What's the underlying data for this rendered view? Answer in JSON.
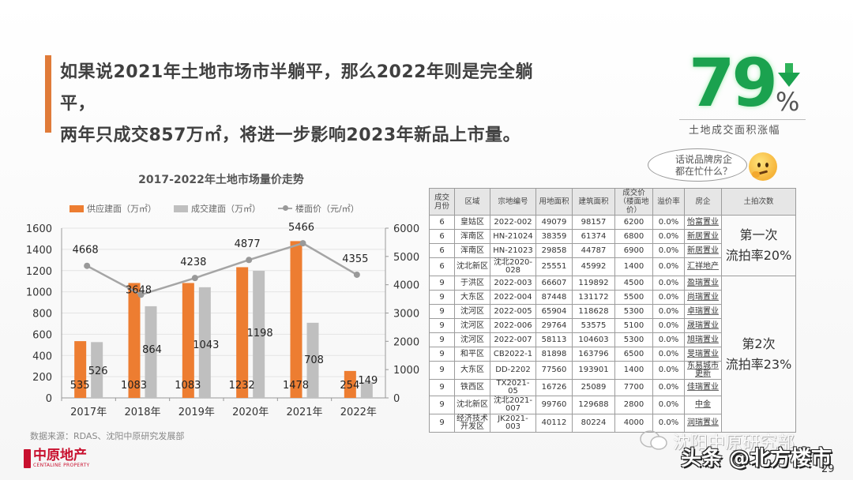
{
  "headline": {
    "line1": "如果说2021年土地市场市半躺平，那么2022年则是完全躺平，",
    "line2": "两年只成交857万㎡，将进一步影响2023年新品上市量。"
  },
  "kpi": {
    "value": "79",
    "unit": "%",
    "direction": "down-arrow-icon",
    "label": "土地成交面积涨幅",
    "color": "#1ba24f"
  },
  "bubble": {
    "line1": "话说品牌房企",
    "line2": "都在忙什么？"
  },
  "chart_data": {
    "type": "bar",
    "title": "2017-2022年土地市场量价走势",
    "categories": [
      "2017年",
      "2018年",
      "2019年",
      "2020年",
      "2021年",
      "2022年"
    ],
    "series": [
      {
        "name": "供应建面（万㎡）",
        "type": "bar",
        "axis": "left",
        "color": "#ed7d31",
        "values": [
          535,
          1083,
          1083,
          1232,
          1478,
          254
        ]
      },
      {
        "name": "成交建面（万㎡）",
        "type": "bar",
        "axis": "left",
        "color": "#bfbfbf",
        "values": [
          526,
          864,
          1043,
          1198,
          708,
          149
        ]
      },
      {
        "name": "楼面价（元/㎡）",
        "type": "line",
        "axis": "right",
        "color": "#a5a5a5",
        "values": [
          4668,
          3648,
          4238,
          4877,
          5466,
          4355
        ]
      }
    ],
    "left_axis": {
      "ylim": [
        0,
        1600
      ],
      "ticks": [
        "0",
        "200",
        "400",
        "600",
        "800",
        "1000",
        "1200",
        "1400",
        "1600"
      ]
    },
    "right_axis": {
      "ylim": [
        0,
        6000
      ],
      "ticks": [
        "0",
        "1000",
        "2000",
        "3000",
        "4000",
        "5000",
        "6000"
      ]
    },
    "xlabel": "",
    "ylabel": "",
    "grid": true,
    "legend_position": "top"
  },
  "source": "数据来源：RDAS、沈阳中原研究发展部",
  "logo": {
    "cn": "中原地产",
    "en": "CENTALINE PROPERTY"
  },
  "table": {
    "headers": [
      "成交月份",
      "区域",
      "宗地编号",
      "用地面积",
      "建筑面积",
      "成交价（楼面地价）",
      "溢价率",
      "房企",
      "土拍次数"
    ],
    "rows": [
      [
        "6",
        "皇姑区",
        "2022-002",
        "49079",
        "98157",
        "6200",
        "0.0%",
        "怡富置业"
      ],
      [
        "6",
        "浑南区",
        "HN-21024",
        "38359",
        "61374",
        "6800",
        "0.0%",
        "新居置业"
      ],
      [
        "6",
        "浑南区",
        "HN-21023",
        "29858",
        "44787",
        "6900",
        "0.0%",
        "新居置业"
      ],
      [
        "6",
        "沈北新区",
        "沈北2020-028",
        "25551",
        "45992",
        "1400",
        "0.0%",
        "汇祥地产"
      ],
      [
        "9",
        "于洪区",
        "2022-003",
        "66607",
        "119892",
        "4500",
        "0.0%",
        "盈瑞置业"
      ],
      [
        "9",
        "大东区",
        "2022-004",
        "87448",
        "131172",
        "5500",
        "0.0%",
        "尚瑞置业"
      ],
      [
        "9",
        "沈河区",
        "2022-005",
        "65904",
        "118628",
        "5300",
        "0.0%",
        "卓瑞置业"
      ],
      [
        "9",
        "沈河区",
        "2022-006",
        "29764",
        "53575",
        "5100",
        "0.0%",
        "晟瑞置业"
      ],
      [
        "9",
        "沈河区",
        "2022-007",
        "58113",
        "104603",
        "5300",
        "0.0%",
        "旭瑞置业"
      ],
      [
        "9",
        "和平区",
        "CB2022-1",
        "81898",
        "163796",
        "6500",
        "0.0%",
        "旻瑞置业"
      ],
      [
        "9",
        "大东区",
        "DD-2202",
        "77560",
        "193901",
        "1400",
        "0.0%",
        "东易城市更新"
      ],
      [
        "9",
        "铁西区",
        "TX2021-05",
        "16726",
        "25089",
        "7700",
        "0.0%",
        "佳瑞置业"
      ],
      [
        "9",
        "沈北新区",
        "沈北2021-007",
        "99760",
        "129688",
        "2800",
        "0.0%",
        "中金"
      ],
      [
        "9",
        "经济技术开发区",
        "JK2021-003",
        "40112",
        "80224",
        "4000",
        "0.0%",
        "润瑞置业"
      ]
    ],
    "groups": [
      {
        "line1": "第一次",
        "line2": "流拍率20%"
      },
      {
        "line1": "第2次",
        "line2": "流拍率23%"
      }
    ]
  },
  "watermark": {
    "text": "沈阳中原研究部",
    "overlay": "头条 @北方楼市"
  },
  "page_number": "29"
}
